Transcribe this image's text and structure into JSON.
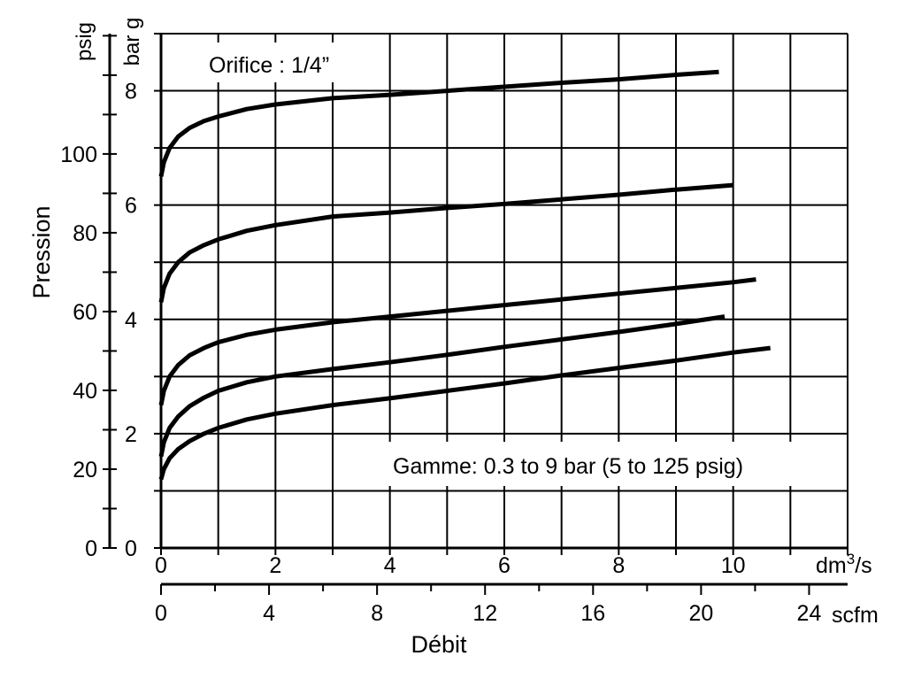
{
  "chart_data": {
    "type": "line",
    "title": "Orifice : 1/4”",
    "annotation": "Gamme: 0.3 to 9 bar (5 to 125 psig)",
    "xlabel": "Débit",
    "ylabel": "Pression",
    "x_units": {
      "primary": "dm",
      "primary_sup": "3",
      "primary_suffix": "/s",
      "secondary": "scfm"
    },
    "y_units": {
      "left": "psig",
      "right": "bar g"
    },
    "xlim": [
      0,
      12
    ],
    "ylim_bar": [
      0,
      9
    ],
    "x_ticks_primary": [
      "0",
      "2",
      "4",
      "6",
      "8",
      "10"
    ],
    "x_ticks_secondary": [
      "0",
      "4",
      "8",
      "12",
      "16",
      "20",
      "24"
    ],
    "y_ticks_psig": [
      "0",
      "20",
      "40",
      "60",
      "80",
      "100"
    ],
    "y_ticks_bar": [
      "0",
      "2",
      "4",
      "6",
      "8"
    ],
    "grid": true,
    "colors": {
      "line": "#000000",
      "grid": "#000000",
      "background": "#ffffff"
    },
    "series": [
      {
        "x": [
          0,
          0.05,
          0.15,
          0.3,
          0.5,
          0.75,
          1,
          1.5,
          2,
          3,
          4,
          5,
          6,
          7,
          8,
          9,
          9.75
        ],
        "y": [
          6.5,
          6.75,
          7.0,
          7.2,
          7.35,
          7.47,
          7.55,
          7.68,
          7.76,
          7.87,
          7.93,
          8.0,
          8.07,
          8.14,
          8.2,
          8.28,
          8.33
        ]
      },
      {
        "x": [
          0,
          0.05,
          0.15,
          0.3,
          0.5,
          0.75,
          1,
          1.5,
          2,
          3,
          4,
          5,
          6,
          7,
          8,
          9,
          10
        ],
        "y": [
          4.3,
          4.55,
          4.8,
          5.0,
          5.17,
          5.3,
          5.4,
          5.55,
          5.65,
          5.8,
          5.87,
          5.95,
          6.02,
          6.1,
          6.18,
          6.27,
          6.35
        ]
      },
      {
        "x": [
          0,
          0.05,
          0.15,
          0.3,
          0.5,
          0.75,
          1,
          1.5,
          2,
          3,
          4,
          5,
          6,
          7,
          8,
          9,
          10,
          10.4
        ],
        "y": [
          2.5,
          2.75,
          3.0,
          3.2,
          3.37,
          3.5,
          3.6,
          3.73,
          3.82,
          3.95,
          4.05,
          4.15,
          4.25,
          4.35,
          4.45,
          4.55,
          4.65,
          4.7
        ]
      },
      {
        "x": [
          0,
          0.05,
          0.15,
          0.3,
          0.5,
          0.75,
          1,
          1.5,
          2,
          3,
          4,
          5,
          6,
          7,
          8,
          9,
          9.85
        ],
        "y": [
          1.6,
          1.85,
          2.1,
          2.3,
          2.48,
          2.63,
          2.75,
          2.9,
          3.0,
          3.13,
          3.25,
          3.38,
          3.52,
          3.65,
          3.78,
          3.92,
          4.05
        ]
      },
      {
        "x": [
          0,
          0.05,
          0.15,
          0.3,
          0.5,
          0.75,
          1,
          1.5,
          2,
          3,
          4,
          5,
          6,
          7,
          8,
          9,
          10,
          10.65
        ],
        "y": [
          1.2,
          1.38,
          1.57,
          1.73,
          1.87,
          2.0,
          2.1,
          2.25,
          2.35,
          2.5,
          2.62,
          2.75,
          2.88,
          3.02,
          3.15,
          3.28,
          3.42,
          3.5
        ]
      }
    ]
  }
}
